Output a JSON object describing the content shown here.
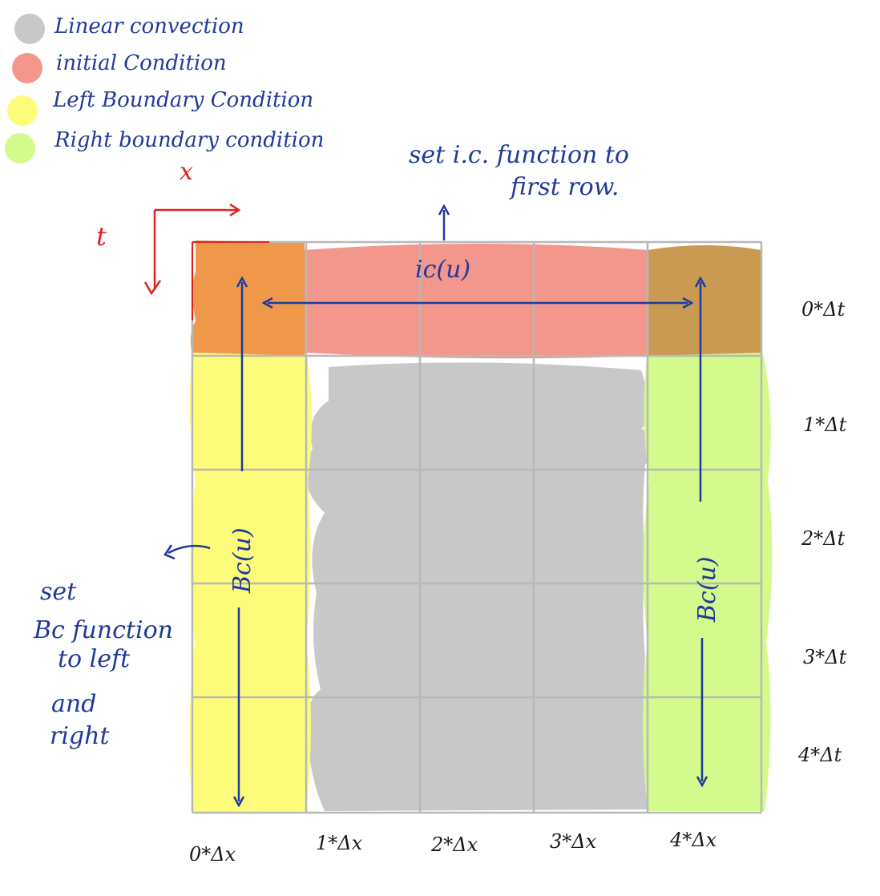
{
  "legend": [
    {
      "label": "Linear convection",
      "color": "#c8c8c8"
    },
    {
      "label": "initial Condition",
      "color": "#f3968c"
    },
    {
      "label": "Left Boundary Condition",
      "color": "#fcfc7a"
    },
    {
      "label": "Right boundary condition",
      "color": "#d4f98c"
    }
  ],
  "axes": {
    "x_label": "x",
    "t_label": "t"
  },
  "x_ticks": [
    "0*Δx",
    "1*Δx",
    "2*Δx",
    "3*Δx",
    "4*Δx"
  ],
  "t_ticks": [
    "0*Δt",
    "1*Δt",
    "2*Δt",
    "3*Δt",
    "4*Δt"
  ],
  "annotations": {
    "ic_note_line1": "set i.c. function to",
    "ic_note_line2": "first row.",
    "ic_label": "ic(u)",
    "bc_label_left": "Bc(u)",
    "bc_label_right": "Bc(u)",
    "bc_note_lines": [
      "set",
      "Bc function",
      "to left",
      "and",
      "right"
    ]
  },
  "colors": {
    "ink": "#1f3a9a",
    "axis_red": "#e0221e",
    "corner_left": "#f0984a",
    "corner_right": "#c99a52",
    "grid": "#b8b8b8"
  }
}
